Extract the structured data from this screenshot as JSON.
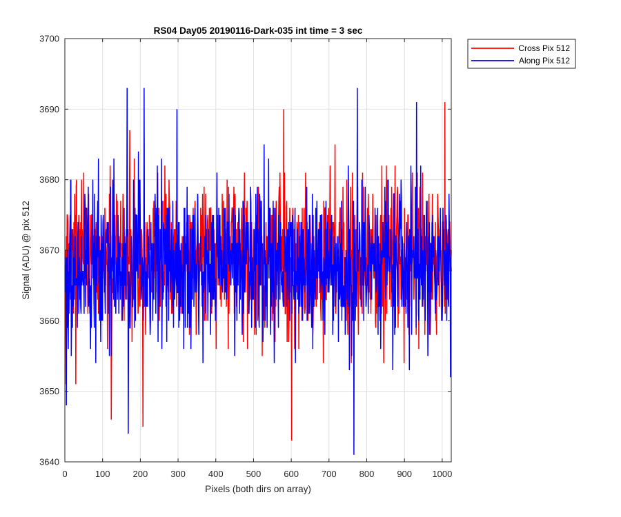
{
  "chart_data": {
    "type": "line",
    "title": "RS04 Day05 20190116-Dark-035 int time = 3 sec",
    "xlabel": "Pixels (both dirs on array)",
    "ylabel": "Signal (ADU) @ pix 512",
    "xlim": [
      0,
      1024
    ],
    "ylim": [
      3640,
      3700
    ],
    "xticks": [
      0,
      100,
      200,
      300,
      400,
      500,
      600,
      700,
      800,
      900,
      1000
    ],
    "yticks": [
      3640,
      3650,
      3660,
      3670,
      3680,
      3690,
      3700
    ],
    "grid": true,
    "legend_position": "outside-top-right",
    "series": [
      {
        "name": "Cross Pix 512",
        "color": "#ff0000",
        "x_start": 1,
        "x_step": 1,
        "y_mean": 3669,
        "y_spread": 5.2,
        "y_min": 3643,
        "y_max": 3691,
        "extremes": [
          [
            3,
            3651
          ],
          [
            29,
            3651
          ],
          [
            120,
            3682
          ],
          [
            123,
            3646
          ],
          [
            172,
            3687
          ],
          [
            207,
            3645
          ],
          [
            210,
            3686
          ],
          [
            580,
            3690
          ],
          [
            601,
            3643
          ],
          [
            1007,
            3691
          ]
        ]
      },
      {
        "name": "Along Pix 512",
        "color": "#0000ff",
        "x_start": 1,
        "x_step": 1,
        "y_mean": 3668,
        "y_spread": 5.4,
        "y_min": 3641,
        "y_max": 3693,
        "extremes": [
          [
            4,
            3648
          ],
          [
            165,
            3693
          ],
          [
            168,
            3644
          ],
          [
            210,
            3693
          ],
          [
            297,
            3690
          ],
          [
            766,
            3641
          ],
          [
            775,
            3693
          ],
          [
            932,
            3691
          ],
          [
            1022,
            3652
          ]
        ]
      }
    ]
  }
}
